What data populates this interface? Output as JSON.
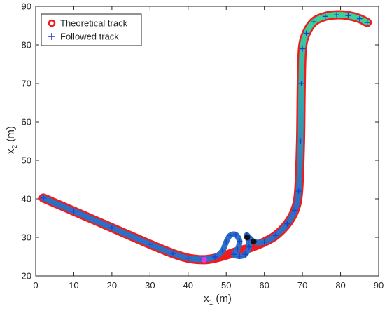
{
  "chart_data": {
    "type": "line",
    "xlabel": {
      "base": "x",
      "sub": "1",
      "unit": " (m)"
    },
    "ylabel": {
      "base": "x",
      "sub": "2",
      "unit": " (m)"
    },
    "xlim": [
      0,
      90
    ],
    "ylim": [
      20,
      90
    ],
    "xticks": [
      "0",
      "10",
      "20",
      "30",
      "40",
      "50",
      "60",
      "70",
      "80",
      "90"
    ],
    "yticks": [
      "20",
      "30",
      "40",
      "50",
      "60",
      "70",
      "80",
      "90"
    ],
    "grid": false,
    "legend_position": "top-left",
    "series": [
      {
        "name": "Theoretical track",
        "marker": "o",
        "color": "#ee1c1c",
        "points": [
          [
            2,
            40.2
          ],
          [
            10,
            36.8
          ],
          [
            20,
            32.5
          ],
          [
            30,
            28.2
          ],
          [
            36,
            25.8
          ],
          [
            40,
            24.6
          ],
          [
            44,
            24.2
          ],
          [
            47,
            24.6
          ],
          [
            50,
            25.4
          ],
          [
            53,
            26.4
          ],
          [
            56,
            27.2
          ],
          [
            60,
            28.8
          ],
          [
            63,
            30.5
          ],
          [
            66,
            33.5
          ],
          [
            68,
            37
          ],
          [
            69,
            42
          ],
          [
            69.5,
            55
          ],
          [
            69.7,
            70
          ],
          [
            70,
            79
          ],
          [
            71,
            83
          ],
          [
            73,
            86
          ],
          [
            76,
            87.4
          ],
          [
            79,
            87.8
          ],
          [
            82,
            87.6
          ],
          [
            85,
            86.8
          ],
          [
            87,
            85.8
          ]
        ]
      },
      {
        "name": "Followed track",
        "marker": "+",
        "color": "#1a3fd6",
        "points": [
          [
            2,
            40.2
          ],
          [
            10,
            36.8
          ],
          [
            20,
            32.5
          ],
          [
            30,
            28.2
          ],
          [
            36,
            25.8
          ],
          [
            40,
            24.6
          ],
          [
            44,
            24.3
          ],
          [
            47,
            24.9
          ],
          [
            49,
            26.5
          ],
          [
            50,
            28.8
          ],
          [
            51,
            30.5
          ],
          [
            52.5,
            30.7
          ],
          [
            53.5,
            29
          ],
          [
            53,
            27
          ],
          [
            52,
            25.6
          ],
          [
            53.5,
            25.1
          ],
          [
            55,
            25.6
          ],
          [
            56,
            27.5
          ],
          [
            55.8,
            29.3
          ],
          [
            55.4,
            30.6
          ],
          [
            56,
            30
          ],
          [
            57.5,
            28.8
          ],
          [
            60,
            28.8
          ],
          [
            63,
            30.5
          ],
          [
            66,
            33.5
          ],
          [
            68,
            37
          ],
          [
            69,
            42
          ],
          [
            69.5,
            55
          ],
          [
            69.7,
            70
          ],
          [
            70,
            79
          ],
          [
            71,
            83
          ],
          [
            73,
            86
          ],
          [
            76,
            87.4
          ],
          [
            79,
            87.8
          ],
          [
            82,
            87.6
          ],
          [
            85,
            86.8
          ],
          [
            87,
            85.8
          ]
        ]
      }
    ],
    "highlight_points": [
      {
        "x": 44.2,
        "y": 24.2,
        "color": "#e636e6"
      },
      {
        "x": 55.5,
        "y": 30.0,
        "color": "#111111"
      },
      {
        "x": 57.2,
        "y": 28.9,
        "color": "#111111"
      }
    ],
    "gradient_colors": [
      "#2c6fc4",
      "#3ad29a"
    ]
  }
}
